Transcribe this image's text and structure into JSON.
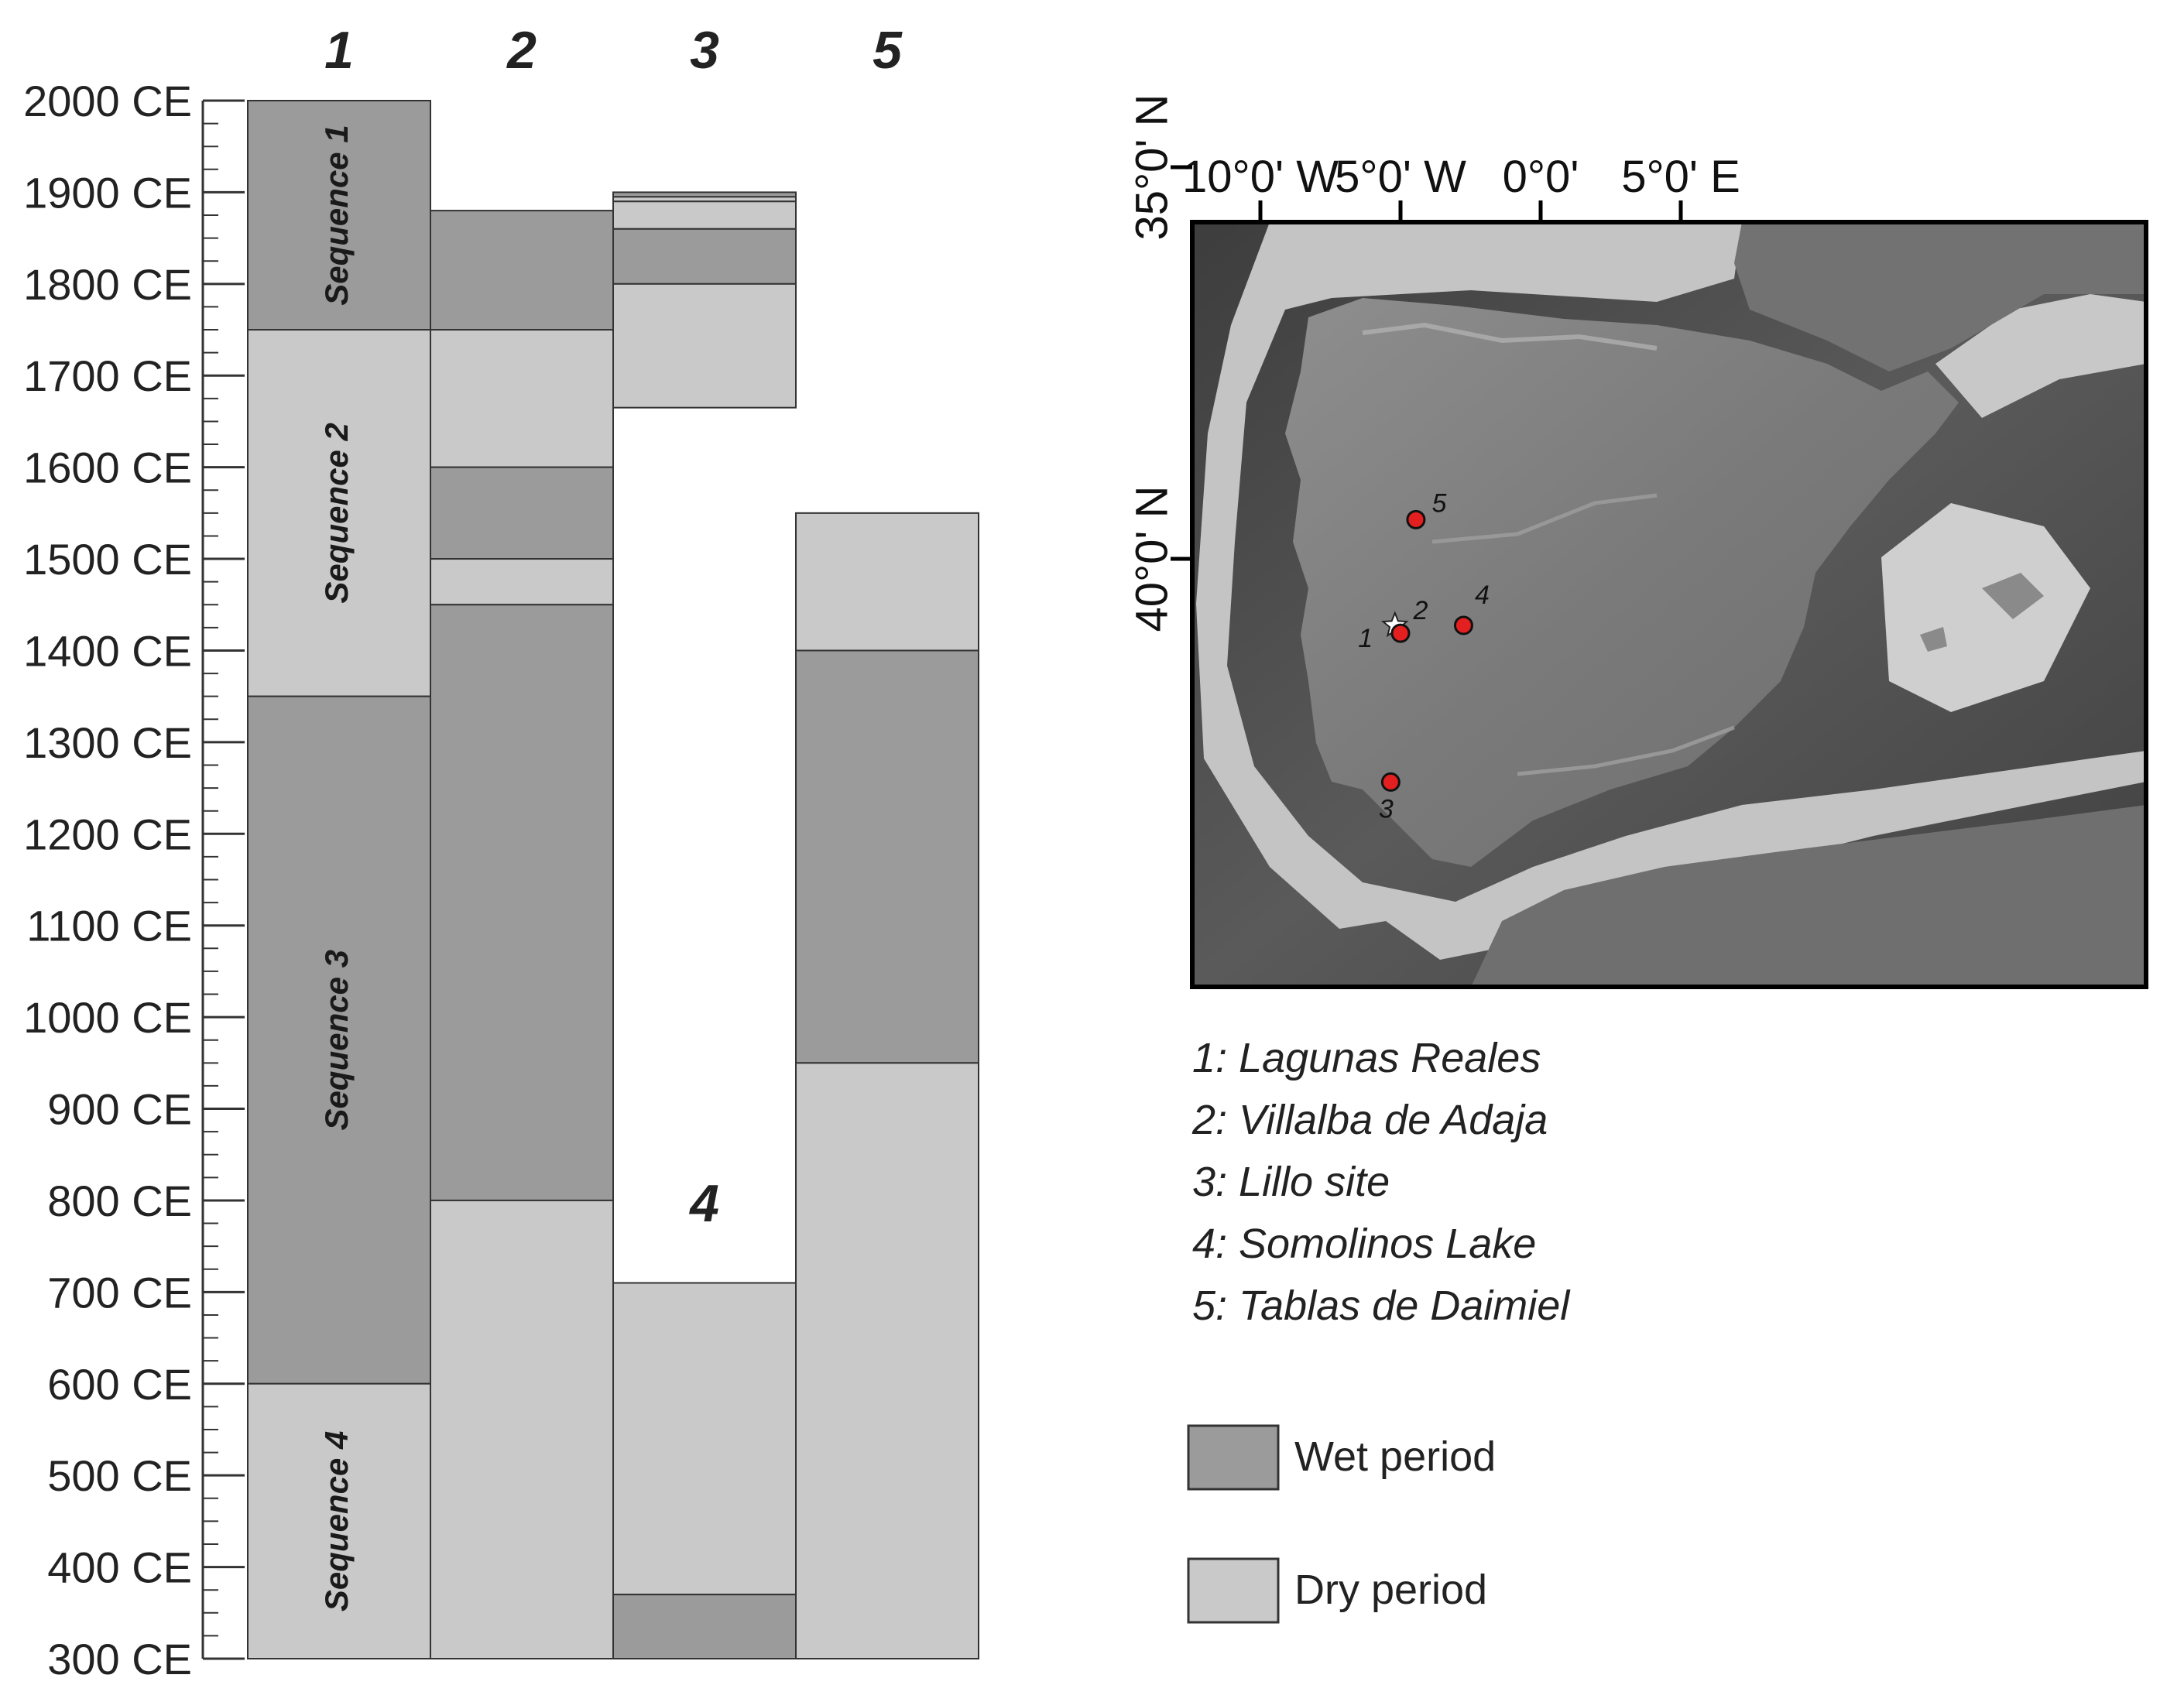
{
  "columns": [
    {
      "id": "1",
      "label": "1"
    },
    {
      "id": "2",
      "label": "2"
    },
    {
      "id": "3",
      "label": "3"
    },
    {
      "id": "5",
      "label": "5"
    }
  ],
  "overlay_label": "4",
  "year_axis": {
    "min": 300,
    "max": 2000,
    "step": 100,
    "labels": [
      "2000 CE",
      "1900 CE",
      "1800 CE",
      "1700 CE",
      "1600 CE",
      "1500 CE",
      "1400 CE",
      "1300 CE",
      "1200 CE",
      "1100 CE",
      "1000 CE",
      "900 CE",
      "800 CE",
      "700 CE",
      "600 CE",
      "500 CE",
      "400 CE",
      "300 CE"
    ]
  },
  "periods": {
    "1": [
      {
        "from": 1750,
        "to": 2000,
        "kind": "wet",
        "label": "Sequence 1"
      },
      {
        "from": 1350,
        "to": 1750,
        "kind": "dry",
        "label": "Sequence 2"
      },
      {
        "from": 600,
        "to": 1350,
        "kind": "wet",
        "label": "Sequence 3"
      },
      {
        "from": 300,
        "to": 600,
        "kind": "dry",
        "label": "Sequence 4"
      }
    ],
    "2": [
      {
        "from": 1750,
        "to": 1880,
        "kind": "wet"
      },
      {
        "from": 1600,
        "to": 1750,
        "kind": "dry"
      },
      {
        "from": 1500,
        "to": 1600,
        "kind": "wet"
      },
      {
        "from": 1450,
        "to": 1500,
        "kind": "dry"
      },
      {
        "from": 800,
        "to": 1450,
        "kind": "wet"
      },
      {
        "from": 300,
        "to": 800,
        "kind": "dry"
      }
    ],
    "3": [
      {
        "from": 1895,
        "to": 1900,
        "kind": "wet"
      },
      {
        "from": 1890,
        "to": 1895,
        "kind": "dry"
      },
      {
        "from": 1860,
        "to": 1890,
        "kind": "dry"
      },
      {
        "from": 1800,
        "to": 1860,
        "kind": "wet"
      },
      {
        "from": 1665,
        "to": 1800,
        "kind": "dry"
      }
    ],
    "4": [
      {
        "from": 370,
        "to": 710,
        "kind": "dry"
      },
      {
        "from": 300,
        "to": 370,
        "kind": "wet"
      }
    ],
    "5": [
      {
        "from": 1400,
        "to": 1550,
        "kind": "dry"
      },
      {
        "from": 950,
        "to": 1400,
        "kind": "wet"
      },
      {
        "from": 300,
        "to": 950,
        "kind": "dry"
      }
    ]
  },
  "map": {
    "lon_labels": [
      "10°0' W",
      "5°0' W",
      "0°0'",
      "5°0' E"
    ],
    "lat_labels": [
      "40°0' N",
      "35°0' N"
    ],
    "sites": [
      {
        "num": "1",
        "lon": -5.2,
        "lat": 40.85,
        "marker": "star"
      },
      {
        "num": "2",
        "lon": -5.0,
        "lat": 40.95,
        "marker": "dot"
      },
      {
        "num": "3",
        "lon": -5.35,
        "lat": 42.85,
        "marker": "dot"
      },
      {
        "num": "4",
        "lon": -2.75,
        "lat": 40.85,
        "marker": "dot"
      },
      {
        "num": "5",
        "lon": -4.45,
        "lat": 39.5,
        "marker": "dot"
      }
    ]
  },
  "site_list": [
    "1: Lagunas Reales",
    "2: Villalba de Adaja",
    "3: Lillo site",
    "4: Somolinos Lake",
    "5: Tablas de Daimiel"
  ],
  "legend": [
    {
      "label": "Wet period",
      "color": "#9b9b9b"
    },
    {
      "label": "Dry period",
      "color": "#c9c9c9"
    }
  ],
  "colors": {
    "wet": "#9b9b9b",
    "dry": "#c9c9c9",
    "site_marker": "#e41f1f"
  }
}
